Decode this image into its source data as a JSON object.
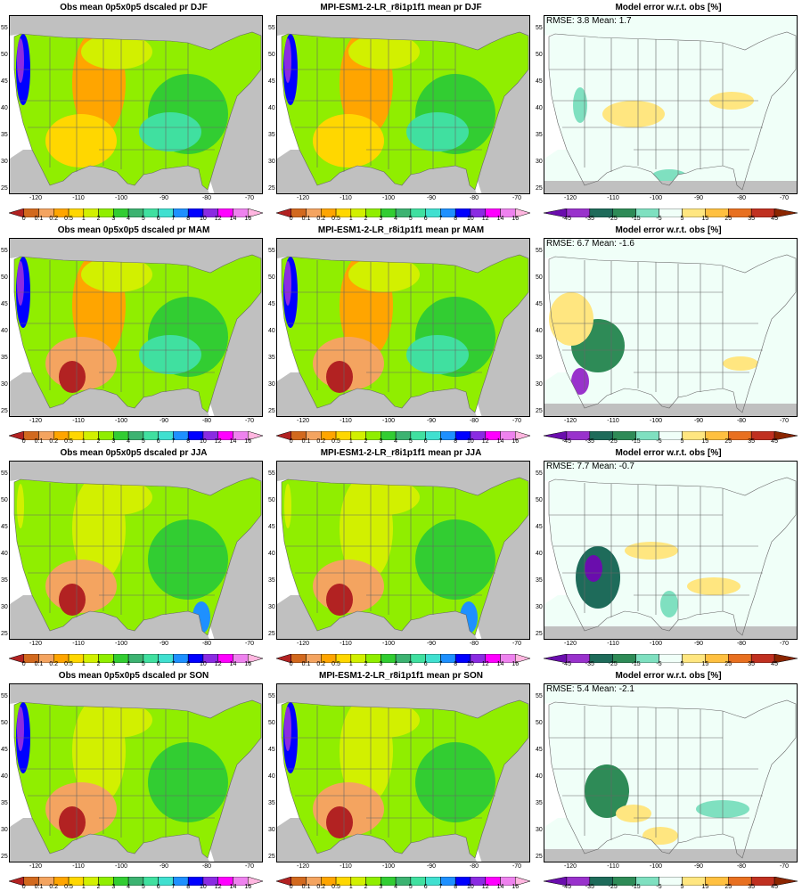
{
  "figure": {
    "rows": [
      {
        "season": "DJF",
        "obs_title": "Obs mean 0p5x0p5 dscaled pr DJF",
        "model_title": "MPI-ESM1-2-LR_r8i1p1f1 mean pr DJF",
        "err_title": "Model error w.r.t. obs [%]",
        "stats": "RMSE: 3.8  Mean: 1.7"
      },
      {
        "season": "MAM",
        "obs_title": "Obs mean 0p5x0p5 dscaled pr MAM",
        "model_title": "MPI-ESM1-2-LR_r8i1p1f1 mean pr MAM",
        "err_title": "Model error w.r.t. obs [%]",
        "stats": "RMSE: 6.7  Mean: -1.6"
      },
      {
        "season": "JJA",
        "obs_title": "Obs mean 0p5x0p5 dscaled pr JJA",
        "model_title": "MPI-ESM1-2-LR_r8i1p1f1 mean pr JJA",
        "err_title": "Model error w.r.t. obs [%]",
        "stats": "RMSE: 7.7  Mean: -0.7"
      },
      {
        "season": "SON",
        "obs_title": "Obs mean 0p5x0p5 dscaled pr SON",
        "model_title": "MPI-ESM1-2-LR_r8i1p1f1 mean pr SON",
        "err_title": "Model error w.r.t. obs [%]",
        "stats": "RMSE: 5.4  Mean: -2.1"
      }
    ],
    "lat_ticks": [
      "25",
      "30",
      "35",
      "40",
      "45",
      "50",
      "55"
    ],
    "lon_ticks": [
      "-120",
      "-110",
      "-100",
      "-90",
      "-80",
      "-70"
    ],
    "precip_colorbar": {
      "labels": [
        "0",
        "0.1",
        "0.2",
        "0.5",
        "1",
        "2",
        "3",
        "4",
        "5",
        "6",
        "7",
        "8",
        "10",
        "12",
        "14",
        "16"
      ],
      "colors": [
        "#b22222",
        "#d2691e",
        "#f4a460",
        "#ffa500",
        "#ffd700",
        "#d2f000",
        "#90ee00",
        "#32cd32",
        "#3cb371",
        "#40e0a0",
        "#40e0d0",
        "#1e90ff",
        "#0000ff",
        "#8a2be2",
        "#ff00ff",
        "#ee82ee",
        "#ffb6e0"
      ]
    },
    "error_colorbar": {
      "labels": [
        "-45",
        "-35",
        "-25",
        "-15",
        "-5",
        "5",
        "15",
        "25",
        "35",
        "45"
      ],
      "colors": [
        "#6a0dad",
        "#9932cc",
        "#1e6b5a",
        "#2e8b57",
        "#7fe0c0",
        "#f0fff8",
        "#ffe680",
        "#ffc040",
        "#e87020",
        "#c03020",
        "#8b2500"
      ]
    },
    "colors": {
      "land_mask": "#c0c0c0",
      "ocean_white": "#ffffff"
    }
  }
}
